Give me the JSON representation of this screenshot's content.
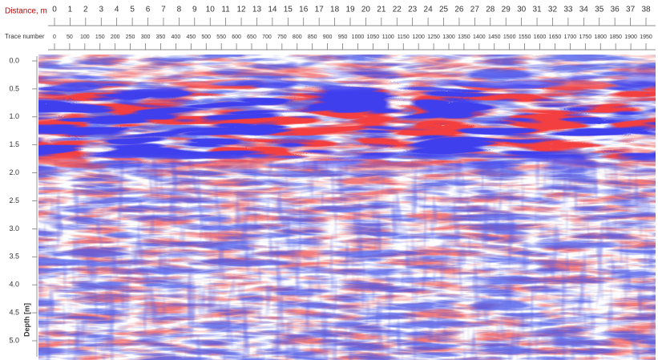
{
  "chart_data": {
    "type": "radargram",
    "x_label": "Distance, m",
    "x2_label": "Trace number",
    "y_label": "Depth [m]",
    "xlim": [
      0,
      38
    ],
    "xticks": [
      0,
      1,
      2,
      3,
      4,
      5,
      6,
      7,
      8,
      9,
      10,
      11,
      12,
      13,
      14,
      15,
      16,
      17,
      18,
      19,
      20,
      21,
      22,
      23,
      24,
      25,
      26,
      27,
      28,
      29,
      30,
      31,
      32,
      33,
      34,
      35,
      36,
      37,
      38
    ],
    "x2lim": [
      0,
      1950
    ],
    "x2ticks": [
      0,
      50,
      100,
      150,
      200,
      250,
      300,
      350,
      400,
      450,
      500,
      550,
      600,
      650,
      700,
      750,
      800,
      850,
      900,
      950,
      1000,
      1050,
      1100,
      1150,
      1200,
      1250,
      1300,
      1350,
      1400,
      1450,
      1500,
      1550,
      1600,
      1650,
      1700,
      1750,
      1800,
      1850,
      1900,
      1950
    ],
    "ylim": [
      0,
      5
    ],
    "yticks": [
      {
        "value": 0,
        "label": "0.0"
      },
      0.5,
      {
        "value": 1,
        "label": "1.0"
      },
      1.5,
      {
        "value": 2,
        "label": "2.0"
      },
      2.5,
      {
        "value": 3,
        "label": "3.0"
      },
      3.5,
      {
        "value": 4,
        "label": "4.0"
      },
      4.5,
      {
        "value": 5,
        "label": "5.0"
      }
    ],
    "positive_color": "#e01010",
    "negative_color": "#1018d0"
  }
}
